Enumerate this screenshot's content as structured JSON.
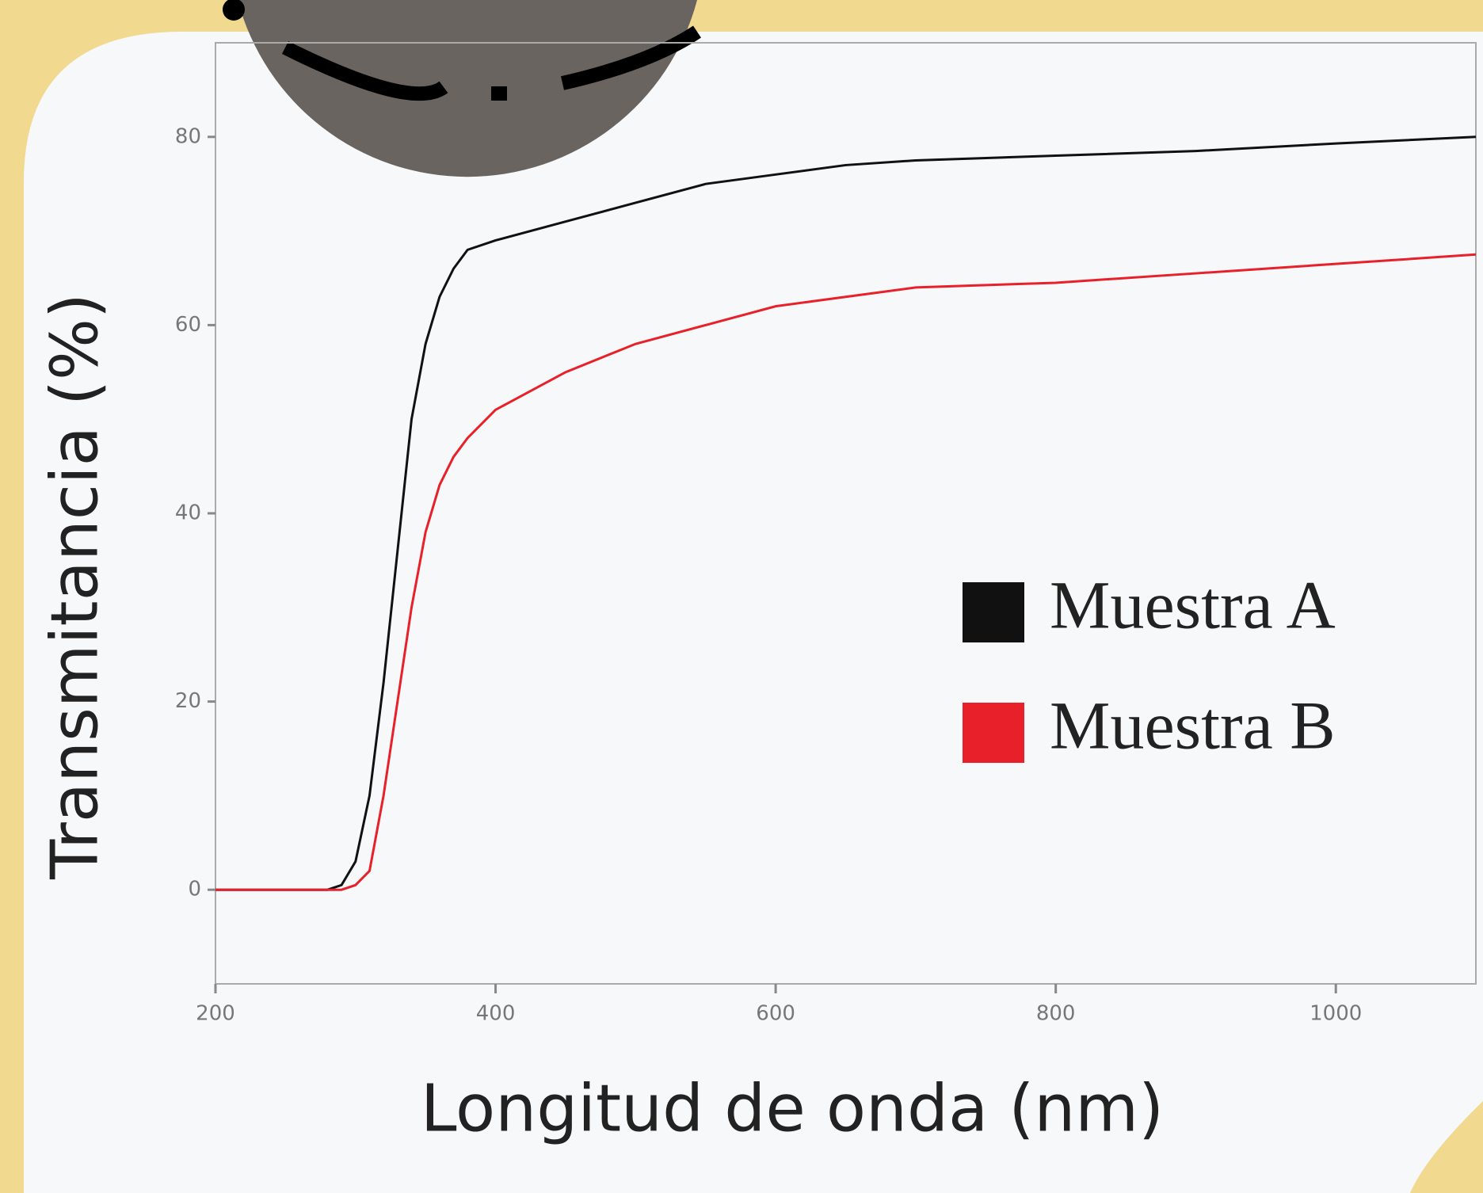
{
  "chart_data": {
    "type": "line",
    "xlabel": "Longitud de onda (nm)",
    "ylabel": "Transmitancia (%)",
    "x": [
      200,
      280,
      290,
      300,
      310,
      320,
      330,
      340,
      350,
      360,
      370,
      380,
      400,
      450,
      500,
      550,
      600,
      650,
      700,
      800,
      900,
      1000,
      1100
    ],
    "series": [
      {
        "name": "Muestra A",
        "color": "#111111",
        "values": [
          0,
          0,
          0.5,
          3,
          10,
          22,
          36,
          50,
          58,
          63,
          66,
          68,
          69,
          71,
          73,
          75,
          76,
          77,
          77.5,
          78,
          78.5,
          79.3,
          80
        ]
      },
      {
        "name": "Muestra B",
        "color": "#e8202a",
        "values": [
          0,
          0,
          0,
          0.5,
          2,
          10,
          20,
          30,
          38,
          43,
          46,
          48,
          51,
          55,
          58,
          60,
          62,
          63,
          64,
          64.5,
          65.5,
          66.5,
          67.5
        ]
      }
    ],
    "xlim": [
      200,
      1100
    ],
    "ylim": [
      -10,
      90
    ],
    "xticks": [
      200,
      400,
      600,
      800,
      1000
    ],
    "yticks": [
      0,
      20,
      40,
      60,
      80
    ],
    "legend": "lower right"
  }
}
